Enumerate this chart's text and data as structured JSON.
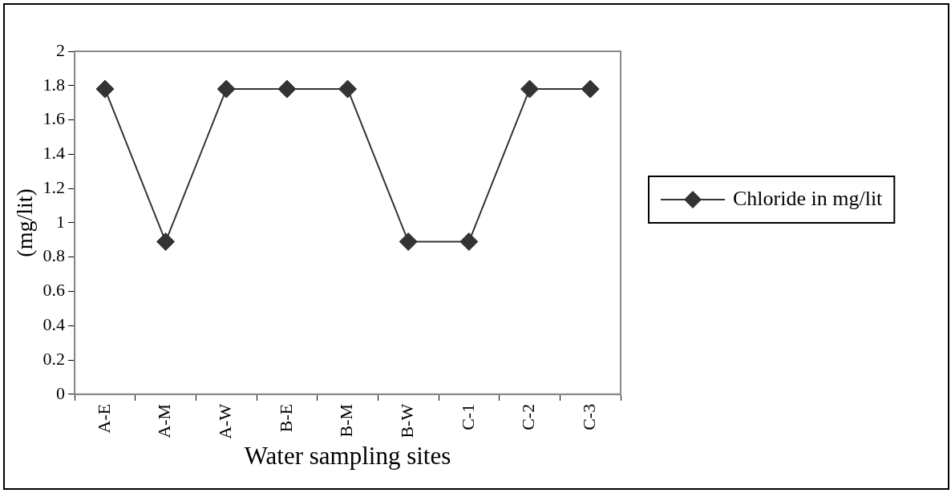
{
  "chart_data": {
    "type": "line",
    "xlabel": "Water sampling sites",
    "ylabel": "(mg/lit)",
    "categories": [
      "A-E",
      "A-M",
      "A-W",
      "B-E",
      "B-M",
      "B-W",
      "C-1",
      "C-2",
      "C-3"
    ],
    "series": [
      {
        "name": "Chloride in mg/lit",
        "color": "#333333",
        "values": [
          1.78,
          0.89,
          1.78,
          1.78,
          1.78,
          0.89,
          0.89,
          1.78,
          1.78
        ]
      }
    ],
    "ylim": [
      0,
      2
    ],
    "yticks": [
      0,
      0.2,
      0.4,
      0.6,
      0.8,
      1,
      1.2,
      1.4,
      1.6,
      1.8,
      2
    ],
    "grid": false,
    "legend": "right",
    "marker": "diamond",
    "line_style": "solid"
  }
}
